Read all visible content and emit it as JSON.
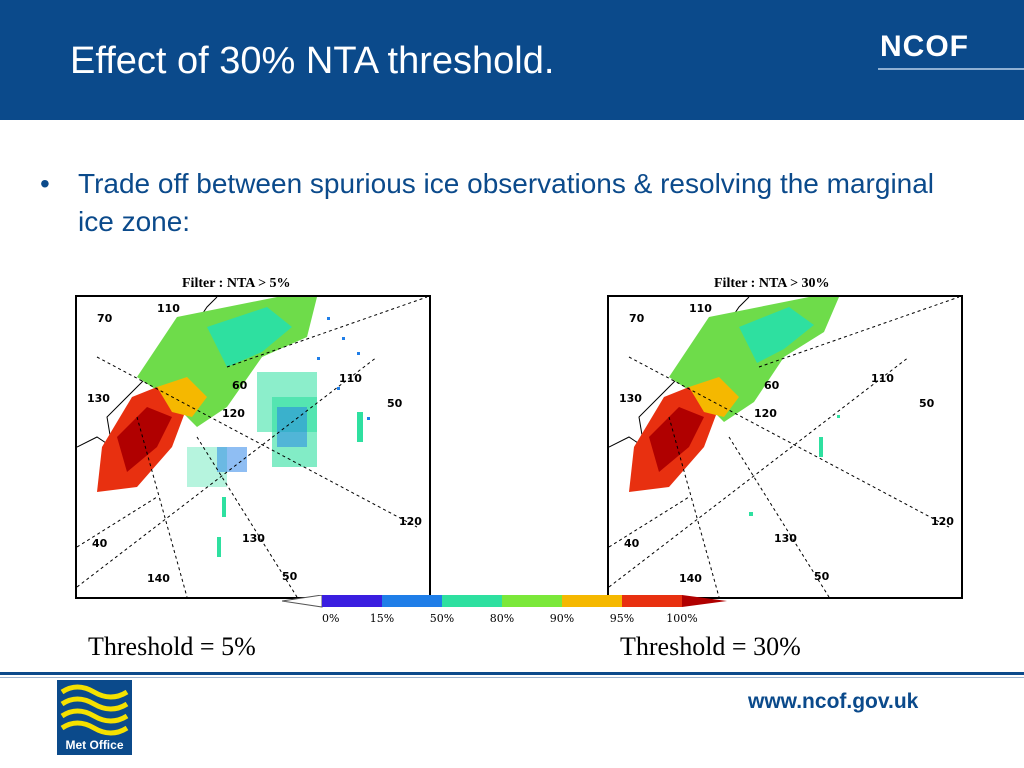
{
  "header": {
    "title": "Effect of 30% NTA threshold.",
    "logo": "NCOF"
  },
  "bullet": {
    "symbol": "•",
    "text": "Trade off between spurious ice observations & resolving the marginal ice zone:"
  },
  "panels": [
    {
      "title": "Filter : NTA > 5%",
      "caption": "Threshold =  5%",
      "map_labels": [
        "70",
        "110",
        "130",
        "60",
        "120",
        "110",
        "50",
        "130",
        "120",
        "40",
        "140",
        "50"
      ]
    },
    {
      "title": "Filter : NTA > 30%",
      "caption": "Threshold = 30%",
      "map_labels": [
        "70",
        "110",
        "130",
        "60",
        "120",
        "110",
        "50",
        "130",
        "120",
        "40",
        "140",
        "50"
      ]
    }
  ],
  "colorbar": {
    "labels": [
      "0%",
      "15%",
      "50%",
      "80%",
      "90%",
      "95%",
      "100%"
    ],
    "colors": [
      "#3a1ee0",
      "#1f7ee8",
      "#2ee0a0",
      "#7be83a",
      "#f5b800",
      "#e83010",
      "#b00000"
    ]
  },
  "footer": {
    "url": "www.ncof.gov.uk",
    "met_logo_text": "Met Office"
  },
  "colors": {
    "brand": "#0b4a8b"
  }
}
